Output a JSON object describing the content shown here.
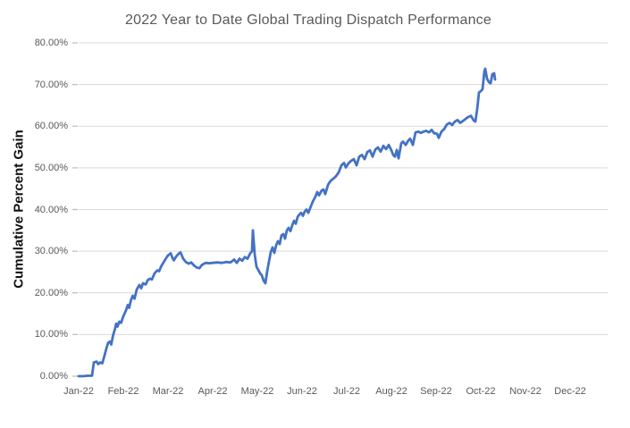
{
  "chart_data": {
    "type": "line",
    "title": "2022 Year to Date Global Trading Dispatch Performance",
    "xlabel": "",
    "ylabel": "Cumulative Percent Gain",
    "ylim": [
      0,
      80
    ],
    "y_tick_values": [
      0,
      10,
      20,
      30,
      40,
      50,
      60,
      70,
      80
    ],
    "y_tick_labels": [
      "0.00%",
      "10.00%",
      "20.00%",
      "30.00%",
      "40.00%",
      "50.00%",
      "60.00%",
      "70.00%",
      "80.00%"
    ],
    "x_tick_labels": [
      "Jan-22",
      "Feb-22",
      "Mar-22",
      "Apr-22",
      "May-22",
      "Jun-22",
      "Jul-22",
      "Aug-22",
      "Sep-22",
      "Oct-22",
      "Nov-22",
      "Dec-22"
    ],
    "grid": "horizontal-only",
    "legend": "none",
    "line_color": "#4472C4",
    "gridline_color": "#D9D9D9",
    "tick_color": "#BFBFBF",
    "x_unit": "months_since_2022-01-01",
    "series": [
      {
        "name": "Cumulative Percent Gain",
        "points": [
          [
            0.0,
            0.0
          ],
          [
            0.1,
            0.0
          ],
          [
            0.2,
            0.1
          ],
          [
            0.3,
            0.1
          ],
          [
            0.34,
            3.3
          ],
          [
            0.4,
            3.5
          ],
          [
            0.44,
            2.9
          ],
          [
            0.48,
            3.3
          ],
          [
            0.53,
            3.1
          ],
          [
            0.58,
            5.0
          ],
          [
            0.62,
            6.6
          ],
          [
            0.66,
            8.0
          ],
          [
            0.7,
            8.3
          ],
          [
            0.73,
            7.6
          ],
          [
            0.77,
            9.8
          ],
          [
            0.81,
            11.2
          ],
          [
            0.84,
            12.6
          ],
          [
            0.87,
            11.9
          ],
          [
            0.91,
            13.1
          ],
          [
            0.95,
            12.8
          ],
          [
            1.0,
            14.4
          ],
          [
            1.06,
            15.8
          ],
          [
            1.1,
            17.1
          ],
          [
            1.13,
            16.4
          ],
          [
            1.17,
            18.2
          ],
          [
            1.21,
            19.3
          ],
          [
            1.25,
            18.6
          ],
          [
            1.3,
            20.8
          ],
          [
            1.36,
            21.9
          ],
          [
            1.4,
            21.1
          ],
          [
            1.44,
            22.3
          ],
          [
            1.5,
            22.0
          ],
          [
            1.55,
            23.1
          ],
          [
            1.6,
            23.4
          ],
          [
            1.64,
            23.2
          ],
          [
            1.7,
            24.7
          ],
          [
            1.76,
            25.4
          ],
          [
            1.8,
            25.2
          ],
          [
            1.85,
            26.4
          ],
          [
            1.9,
            27.3
          ],
          [
            1.95,
            28.2
          ],
          [
            2.0,
            29.0
          ],
          [
            2.06,
            29.5
          ],
          [
            2.1,
            28.4
          ],
          [
            2.13,
            27.8
          ],
          [
            2.18,
            28.7
          ],
          [
            2.24,
            29.4
          ],
          [
            2.28,
            29.7
          ],
          [
            2.34,
            28.2
          ],
          [
            2.4,
            27.4
          ],
          [
            2.46,
            27.0
          ],
          [
            2.52,
            27.3
          ],
          [
            2.58,
            26.6
          ],
          [
            2.64,
            26.1
          ],
          [
            2.7,
            25.9
          ],
          [
            2.76,
            26.7
          ],
          [
            2.84,
            27.2
          ],
          [
            2.92,
            27.1
          ],
          [
            3.0,
            27.2
          ],
          [
            3.1,
            27.3
          ],
          [
            3.2,
            27.2
          ],
          [
            3.3,
            27.4
          ],
          [
            3.4,
            27.3
          ],
          [
            3.48,
            28.0
          ],
          [
            3.54,
            27.2
          ],
          [
            3.6,
            28.2
          ],
          [
            3.66,
            27.7
          ],
          [
            3.72,
            28.6
          ],
          [
            3.78,
            28.2
          ],
          [
            3.84,
            29.5
          ],
          [
            3.88,
            30.0
          ],
          [
            3.9,
            35.0
          ],
          [
            3.94,
            29.3
          ],
          [
            3.98,
            26.3
          ],
          [
            4.02,
            25.5
          ],
          [
            4.06,
            24.7
          ],
          [
            4.1,
            24.2
          ],
          [
            4.14,
            22.9
          ],
          [
            4.18,
            22.3
          ],
          [
            4.22,
            25.2
          ],
          [
            4.26,
            27.5
          ],
          [
            4.3,
            29.8
          ],
          [
            4.34,
            30.9
          ],
          [
            4.38,
            29.6
          ],
          [
            4.42,
            31.4
          ],
          [
            4.46,
            32.4
          ],
          [
            4.5,
            31.7
          ],
          [
            4.54,
            33.8
          ],
          [
            4.58,
            34.1
          ],
          [
            4.62,
            33.0
          ],
          [
            4.66,
            35.0
          ],
          [
            4.7,
            35.6
          ],
          [
            4.74,
            34.8
          ],
          [
            4.78,
            36.2
          ],
          [
            4.82,
            37.3
          ],
          [
            4.86,
            36.6
          ],
          [
            4.9,
            38.2
          ],
          [
            4.94,
            38.8
          ],
          [
            4.98,
            39.2
          ],
          [
            5.02,
            38.5
          ],
          [
            5.06,
            39.5
          ],
          [
            5.1,
            40.0
          ],
          [
            5.14,
            39.2
          ],
          [
            5.18,
            40.3
          ],
          [
            5.24,
            41.9
          ],
          [
            5.3,
            43.1
          ],
          [
            5.34,
            44.2
          ],
          [
            5.38,
            43.4
          ],
          [
            5.44,
            44.6
          ],
          [
            5.48,
            44.8
          ],
          [
            5.52,
            43.7
          ],
          [
            5.58,
            45.9
          ],
          [
            5.64,
            46.9
          ],
          [
            5.7,
            47.4
          ],
          [
            5.76,
            48.0
          ],
          [
            5.82,
            48.9
          ],
          [
            5.88,
            50.6
          ],
          [
            5.94,
            51.2
          ],
          [
            5.98,
            50.1
          ],
          [
            6.04,
            51.1
          ],
          [
            6.1,
            51.7
          ],
          [
            6.16,
            52.1
          ],
          [
            6.22,
            50.6
          ],
          [
            6.28,
            52.7
          ],
          [
            6.34,
            53.1
          ],
          [
            6.4,
            52.1
          ],
          [
            6.46,
            53.8
          ],
          [
            6.52,
            54.2
          ],
          [
            6.58,
            52.7
          ],
          [
            6.64,
            54.4
          ],
          [
            6.7,
            54.9
          ],
          [
            6.76,
            53.9
          ],
          [
            6.82,
            55.3
          ],
          [
            6.88,
            54.5
          ],
          [
            6.94,
            55.5
          ],
          [
            7.0,
            54.2
          ],
          [
            7.04,
            53.1
          ],
          [
            7.08,
            52.7
          ],
          [
            7.12,
            54.3
          ],
          [
            7.16,
            52.3
          ],
          [
            7.22,
            55.9
          ],
          [
            7.26,
            56.3
          ],
          [
            7.32,
            55.5
          ],
          [
            7.38,
            56.6
          ],
          [
            7.42,
            57.0
          ],
          [
            7.48,
            55.5
          ],
          [
            7.54,
            58.5
          ],
          [
            7.6,
            58.7
          ],
          [
            7.66,
            58.4
          ],
          [
            7.72,
            58.7
          ],
          [
            7.78,
            58.9
          ],
          [
            7.84,
            58.5
          ],
          [
            7.9,
            59.1
          ],
          [
            7.96,
            58.3
          ],
          [
            8.02,
            58.2
          ],
          [
            8.06,
            57.2
          ],
          [
            8.12,
            58.7
          ],
          [
            8.18,
            59.3
          ],
          [
            8.24,
            60.4
          ],
          [
            8.3,
            60.8
          ],
          [
            8.36,
            60.3
          ],
          [
            8.42,
            61.1
          ],
          [
            8.48,
            61.5
          ],
          [
            8.54,
            60.8
          ],
          [
            8.62,
            61.4
          ],
          [
            8.7,
            62.1
          ],
          [
            8.78,
            62.5
          ],
          [
            8.84,
            61.4
          ],
          [
            8.88,
            61.1
          ],
          [
            8.92,
            64.1
          ],
          [
            8.96,
            68.1
          ],
          [
            9.0,
            68.4
          ],
          [
            9.04,
            68.9
          ],
          [
            9.08,
            73.1
          ],
          [
            9.1,
            73.8
          ],
          [
            9.14,
            71.4
          ],
          [
            9.18,
            70.6
          ],
          [
            9.22,
            70.3
          ],
          [
            9.26,
            72.5
          ],
          [
            9.3,
            72.7
          ],
          [
            9.32,
            71.2
          ]
        ]
      }
    ]
  }
}
